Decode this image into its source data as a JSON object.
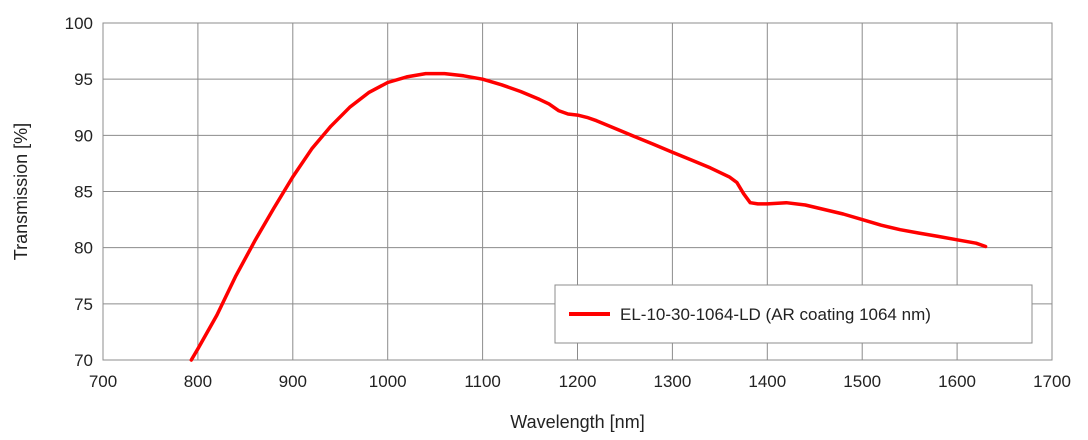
{
  "chart_data": {
    "type": "line",
    "xlabel": "Wavelength [nm]",
    "ylabel": "Transmission [%]",
    "xlim": [
      700,
      1700
    ],
    "ylim": [
      70,
      100
    ],
    "xticks": [
      700,
      800,
      900,
      1000,
      1100,
      1200,
      1300,
      1400,
      1500,
      1600,
      1700
    ],
    "yticks": [
      70,
      75,
      80,
      85,
      90,
      95,
      100
    ],
    "grid": true,
    "legend_position": "bottom-right",
    "series": [
      {
        "name": "EL-10-30-1064-LD (AR coating 1064 nm)",
        "color": "#ff0000",
        "x": [
          793,
          800,
          820,
          840,
          860,
          880,
          900,
          920,
          940,
          960,
          980,
          1000,
          1020,
          1040,
          1060,
          1080,
          1100,
          1120,
          1140,
          1160,
          1170,
          1180,
          1190,
          1200,
          1210,
          1220,
          1240,
          1260,
          1280,
          1300,
          1320,
          1340,
          1360,
          1368,
          1375,
          1382,
          1390,
          1400,
          1420,
          1440,
          1460,
          1480,
          1500,
          1520,
          1540,
          1560,
          1580,
          1600,
          1620,
          1630
        ],
        "y": [
          70.0,
          71.0,
          74.0,
          77.5,
          80.6,
          83.5,
          86.3,
          88.8,
          90.8,
          92.5,
          93.8,
          94.7,
          95.2,
          95.5,
          95.5,
          95.3,
          95.0,
          94.5,
          93.9,
          93.2,
          92.8,
          92.2,
          91.9,
          91.8,
          91.6,
          91.3,
          90.6,
          89.9,
          89.2,
          88.5,
          87.8,
          87.1,
          86.3,
          85.8,
          84.8,
          84.0,
          83.9,
          83.9,
          84.0,
          83.8,
          83.4,
          83.0,
          82.5,
          82.0,
          81.6,
          81.3,
          81.0,
          80.7,
          80.4,
          80.1
        ]
      }
    ]
  }
}
